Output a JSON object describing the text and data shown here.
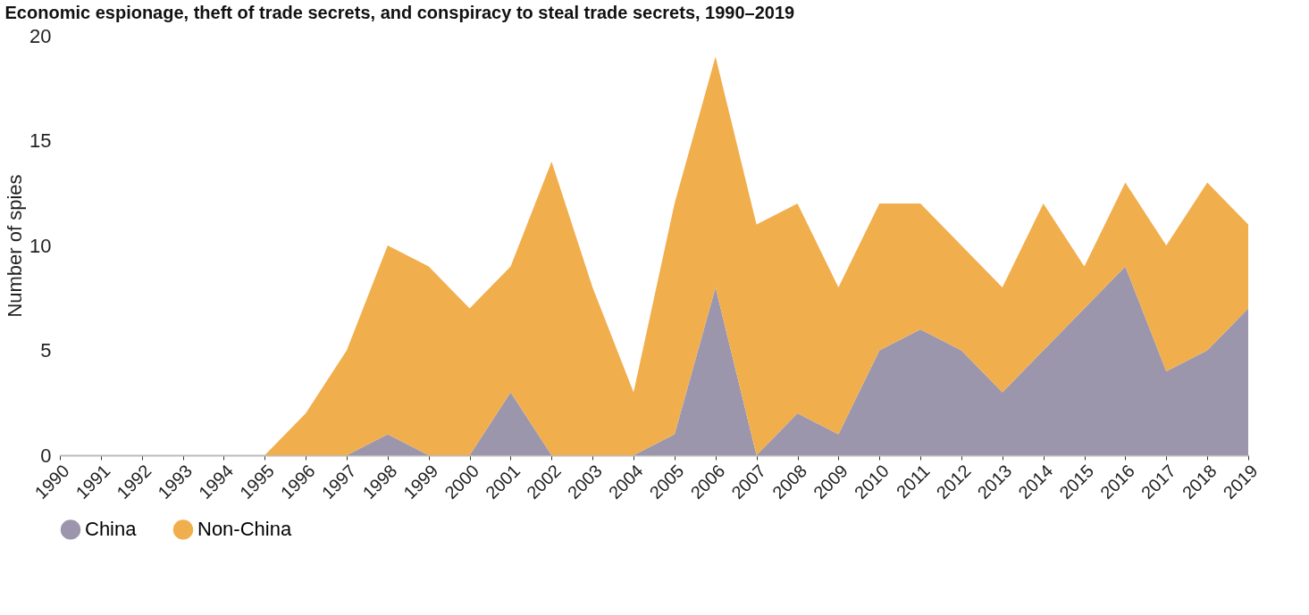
{
  "chart_data": {
    "type": "area",
    "stacked": true,
    "title": "Economic espionage, theft of trade secrets, and conspiracy to steal trade secrets, 1990–2019",
    "ylabel": "Number of spies",
    "categories": [
      "1990",
      "1991",
      "1992",
      "1993",
      "1994",
      "1995",
      "1996",
      "1997",
      "1998",
      "1999",
      "2000",
      "2001",
      "2002",
      "2003",
      "2004",
      "2005",
      "2006",
      "2007",
      "2008",
      "2009",
      "2010",
      "2011",
      "2012",
      "2013",
      "2014",
      "2015",
      "2016",
      "2017",
      "2018",
      "2019"
    ],
    "series": [
      {
        "name": "China",
        "color": "#9c96ad",
        "values": [
          0,
          0,
          0,
          0,
          0,
          0,
          0,
          0,
          1,
          0,
          0,
          3,
          0,
          0,
          0,
          1,
          8,
          0,
          2,
          1,
          5,
          6,
          5,
          3,
          5,
          7,
          9,
          4,
          5,
          7
        ]
      },
      {
        "name": "Non-China",
        "color": "#f1ae4d",
        "values": [
          0,
          0,
          0,
          0,
          0,
          0,
          2,
          5,
          9,
          9,
          7,
          6,
          14,
          8,
          3,
          11,
          11,
          11,
          10,
          7,
          7,
          6,
          5,
          5,
          7,
          2,
          4,
          6,
          8,
          4
        ]
      }
    ],
    "ylim": [
      0,
      20
    ],
    "yticks": [
      0,
      5,
      10,
      15,
      20
    ],
    "grid": false,
    "legend": "bottom"
  }
}
